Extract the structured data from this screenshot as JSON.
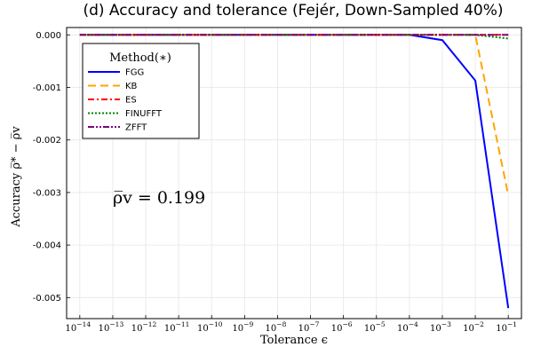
{
  "chart_data": {
    "type": "line",
    "title": "(d) Accuracy and tolerance (Fejér, Down-Sampled 40%)",
    "xlabel": "Tolerance ϵ",
    "ylabel": "Accuracy ρ̅* − ρ̅v",
    "x_scale": "log10",
    "xlim_exponents": [
      -14.4,
      -0.6
    ],
    "ylim": [
      -0.0054,
      0.00014
    ],
    "x_ticks": [
      {
        "exp": -14,
        "label_base": "10",
        "label_exp": "−14"
      },
      {
        "exp": -13,
        "label_base": "10",
        "label_exp": "−13"
      },
      {
        "exp": -12,
        "label_base": "10",
        "label_exp": "−12"
      },
      {
        "exp": -11,
        "label_base": "10",
        "label_exp": "−11"
      },
      {
        "exp": -10,
        "label_base": "10",
        "label_exp": "−10"
      },
      {
        "exp": -9,
        "label_base": "10",
        "label_exp": "−9"
      },
      {
        "exp": -8,
        "label_base": "10",
        "label_exp": "−8"
      },
      {
        "exp": -7,
        "label_base": "10",
        "label_exp": "−7"
      },
      {
        "exp": -6,
        "label_base": "10",
        "label_exp": "−6"
      },
      {
        "exp": -5,
        "label_base": "10",
        "label_exp": "−5"
      },
      {
        "exp": -4,
        "label_base": "10",
        "label_exp": "−4"
      },
      {
        "exp": -3,
        "label_base": "10",
        "label_exp": "−3"
      },
      {
        "exp": -2,
        "label_base": "10",
        "label_exp": "−2"
      },
      {
        "exp": -1,
        "label_base": "10",
        "label_exp": "−1"
      }
    ],
    "y_ticks": [
      {
        "value": 0.0,
        "label": "0.000"
      },
      {
        "value": -0.001,
        "label": "-0.001"
      },
      {
        "value": -0.002,
        "label": "-0.002"
      },
      {
        "value": -0.003,
        "label": "-0.003"
      },
      {
        "value": -0.004,
        "label": "-0.004"
      },
      {
        "value": -0.005,
        "label": "-0.005"
      }
    ],
    "grid": true,
    "legend": {
      "title": "Method(∗)",
      "placement": "top-left"
    },
    "annotation": {
      "text": "ρ̅v = 0.199",
      "x_exp": -13,
      "y": -0.0031
    },
    "series": [
      {
        "name": "FGG",
        "color": "#0000ff",
        "dash": "solid",
        "x_exp": [
          -14,
          -13,
          -12,
          -11,
          -10,
          -9,
          -8,
          -7,
          -6,
          -5,
          -4,
          -3,
          -2,
          -1
        ],
        "values": [
          0,
          0,
          0,
          0,
          0,
          0,
          0,
          0,
          0,
          0,
          0,
          -0.0001,
          -0.00087,
          -0.0052
        ]
      },
      {
        "name": "KB",
        "color": "#ffa500",
        "dash": "dash",
        "x_exp": [
          -14,
          -13,
          -12,
          -11,
          -10,
          -9,
          -8,
          -7,
          -6,
          -5,
          -4,
          -3,
          -2,
          -1
        ],
        "values": [
          0,
          0,
          0,
          0,
          0,
          0,
          0,
          0,
          0,
          0,
          0,
          0,
          0,
          -0.00305
        ]
      },
      {
        "name": "ES",
        "color": "#ff0000",
        "dash": "dashdot",
        "x_exp": [
          -14,
          -13,
          -12,
          -11,
          -10,
          -9,
          -8,
          -7,
          -6,
          -5,
          -4,
          -3,
          -2,
          -1
        ],
        "values": [
          0,
          0,
          0,
          0,
          0,
          0,
          0,
          0,
          0,
          0,
          0,
          0,
          0,
          0
        ]
      },
      {
        "name": "FINUFFT",
        "color": "#008000",
        "dash": "dot",
        "x_exp": [
          -14,
          -13,
          -12,
          -11,
          -10,
          -9,
          -8,
          -7,
          -6,
          -5,
          -4,
          -3,
          -2,
          -1
        ],
        "values": [
          0,
          0,
          0,
          0,
          0,
          0,
          0,
          0,
          0,
          0,
          0,
          0,
          0,
          -7e-05
        ]
      },
      {
        "name": "ZFFT",
        "color": "#800080",
        "dash": "dashdotdot",
        "x_exp": [
          -14,
          -13,
          -12,
          -11,
          -10,
          -9,
          -8,
          -7,
          -6,
          -5,
          -4,
          -3,
          -2,
          -1
        ],
        "values": [
          0,
          0,
          0,
          0,
          0,
          0,
          0,
          0,
          0,
          0,
          0,
          0,
          0,
          0
        ]
      }
    ]
  }
}
